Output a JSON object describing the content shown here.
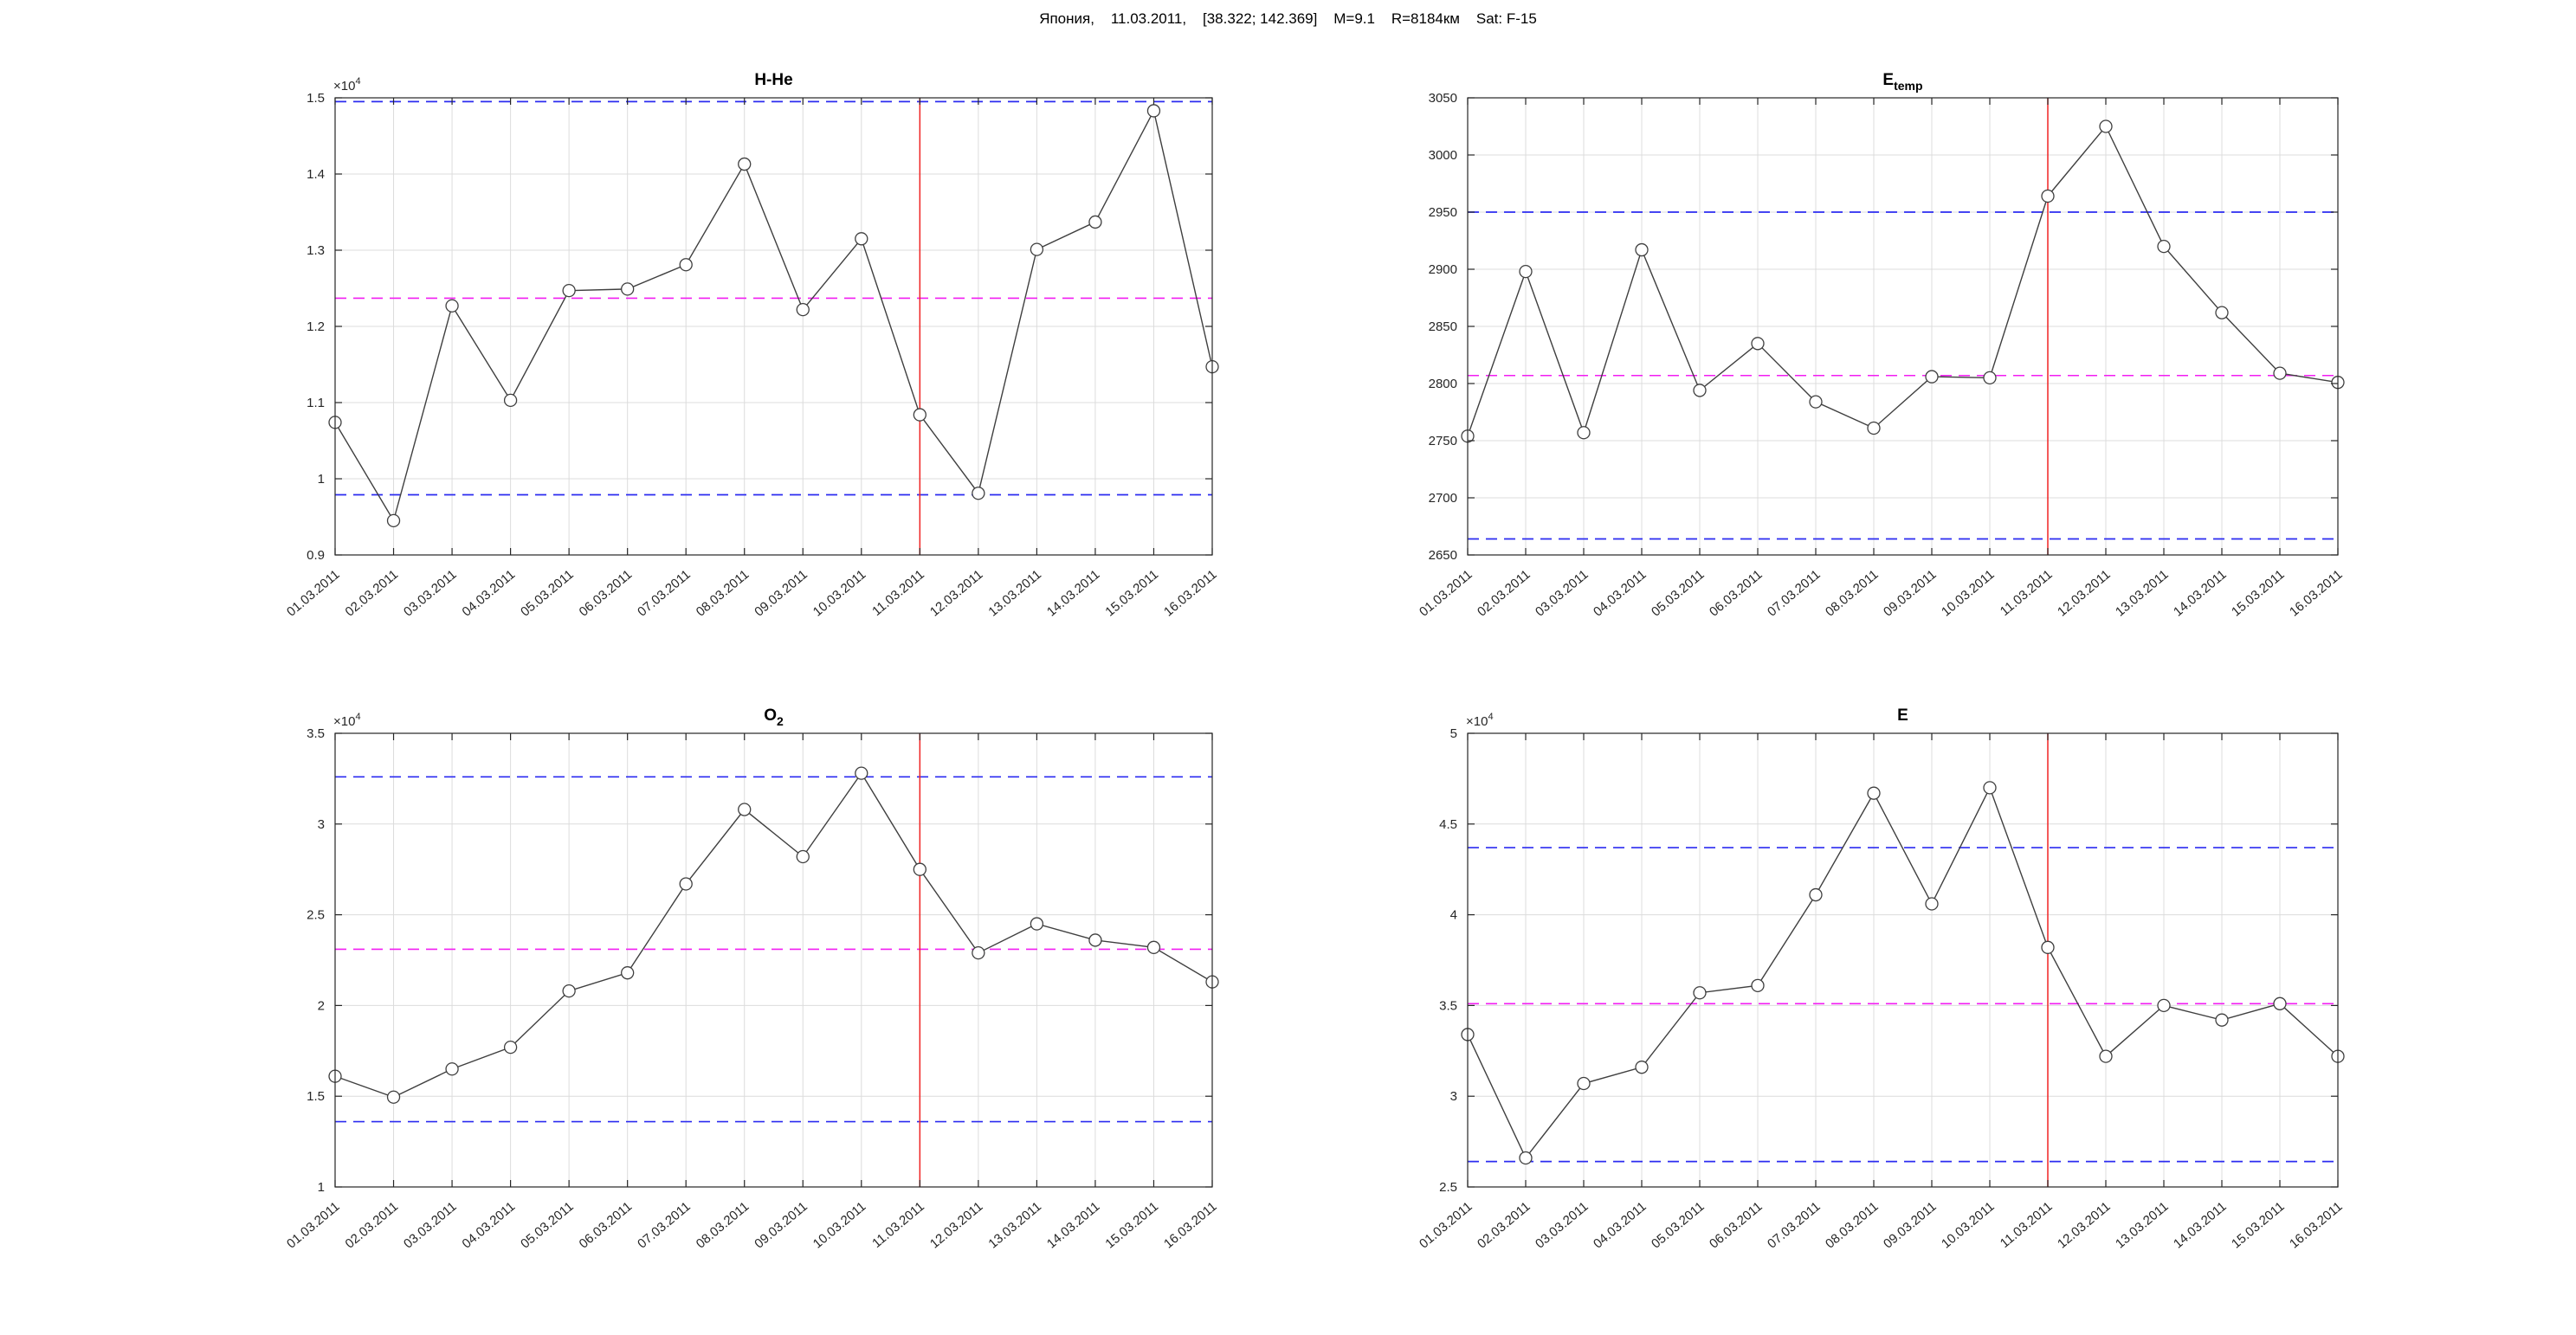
{
  "header": {
    "title": "Япония,    11.03.2011,    [38.322; 142.369]    M=9.1    R=8184км    Sat: F-15"
  },
  "colors": {
    "series": "#3f3f3f",
    "bound": "#2b2bf0",
    "mean": "#f21df2",
    "event": "#f02424",
    "grid": "#dcdcdc",
    "axis": "#262626",
    "background": "#ffffff"
  },
  "chart_data": [
    {
      "id": "h-he",
      "type": "line",
      "title": "H-He",
      "title_sub": "",
      "position": "top-left",
      "grid": true,
      "marker": "circle",
      "categories": [
        "01.03.2011",
        "02.03.2011",
        "03.03.2011",
        "04.03.2011",
        "05.03.2011",
        "06.03.2011",
        "07.03.2011",
        "08.03.2011",
        "09.03.2011",
        "10.03.2011",
        "11.03.2011",
        "12.03.2011",
        "13.03.2011",
        "14.03.2011",
        "15.03.2011",
        "16.03.2011"
      ],
      "values": [
        10740,
        9450,
        12270,
        11030,
        12470,
        12490,
        12810,
        14130,
        12220,
        13150,
        10840,
        9810,
        13010,
        13370,
        14830,
        11470
      ],
      "ylim": [
        9000,
        15000
      ],
      "yticks": [
        9000,
        10000,
        11000,
        12000,
        13000,
        14000,
        15000
      ],
      "ytick_labels": [
        "0.9",
        "1",
        "1.1",
        "1.2",
        "1.3",
        "1.4",
        "1.5"
      ],
      "exponent": "4",
      "exponent_base": "×10",
      "upper_bound": 14950,
      "lower_bound": 9790,
      "mean_line": 12370,
      "event_date": "11.03.2011"
    },
    {
      "id": "e-temp",
      "type": "line",
      "title": "E",
      "title_sub": "temp",
      "position": "top-right",
      "grid": true,
      "marker": "circle",
      "categories": [
        "01.03.2011",
        "02.03.2011",
        "03.03.2011",
        "04.03.2011",
        "05.03.2011",
        "06.03.2011",
        "07.03.2011",
        "08.03.2011",
        "09.03.2011",
        "10.03.2011",
        "11.03.2011",
        "12.03.2011",
        "13.03.2011",
        "14.03.2011",
        "15.03.2011",
        "16.03.2011"
      ],
      "values": [
        2754,
        2898,
        2757,
        2917,
        2794,
        2835,
        2784,
        2761,
        2806,
        2805,
        2964,
        3025,
        2920,
        2862,
        2809,
        2801
      ],
      "ylim": [
        2650,
        3050
      ],
      "yticks": [
        2650,
        2700,
        2750,
        2800,
        2850,
        2900,
        2950,
        3000,
        3050
      ],
      "ytick_labels": [
        "2650",
        "2700",
        "2750",
        "2800",
        "2850",
        "2900",
        "2950",
        "3000",
        "3050"
      ],
      "exponent": "",
      "exponent_base": "",
      "upper_bound": 2950,
      "lower_bound": 2664,
      "mean_line": 2807,
      "event_date": "11.03.2011"
    },
    {
      "id": "o2",
      "type": "line",
      "title": "O",
      "title_sub": "2",
      "position": "bottom-left",
      "grid": true,
      "marker": "circle",
      "categories": [
        "01.03.2011",
        "02.03.2011",
        "03.03.2011",
        "04.03.2011",
        "05.03.2011",
        "06.03.2011",
        "07.03.2011",
        "08.03.2011",
        "09.03.2011",
        "10.03.2011",
        "11.03.2011",
        "12.03.2011",
        "13.03.2011",
        "14.03.2011",
        "15.03.2011",
        "16.03.2011"
      ],
      "values": [
        16100,
        14950,
        16500,
        17700,
        20800,
        21800,
        26700,
        30800,
        28200,
        32800,
        27500,
        22900,
        24500,
        23600,
        23200,
        21300
      ],
      "ylim": [
        10000,
        35000
      ],
      "yticks": [
        10000,
        15000,
        20000,
        25000,
        30000,
        35000
      ],
      "ytick_labels": [
        "1",
        "1.5",
        "2",
        "2.5",
        "3",
        "3.5"
      ],
      "exponent": "4",
      "exponent_base": "×10",
      "upper_bound": 32600,
      "lower_bound": 13600,
      "mean_line": 23100,
      "event_date": "11.03.2011"
    },
    {
      "id": "e",
      "type": "line",
      "title": "E",
      "title_sub": "",
      "position": "bottom-right",
      "grid": true,
      "marker": "circle",
      "categories": [
        "01.03.2011",
        "02.03.2011",
        "03.03.2011",
        "04.03.2011",
        "05.03.2011",
        "06.03.2011",
        "07.03.2011",
        "08.03.2011",
        "09.03.2011",
        "10.03.2011",
        "11.03.2011",
        "12.03.2011",
        "13.03.2011",
        "14.03.2011",
        "15.03.2011",
        "16.03.2011"
      ],
      "values": [
        33400,
        26600,
        30700,
        31600,
        35700,
        36100,
        41100,
        46700,
        40600,
        47000,
        38200,
        32200,
        35000,
        34200,
        35100,
        32200
      ],
      "ylim": [
        25000,
        50000
      ],
      "yticks": [
        25000,
        30000,
        35000,
        40000,
        45000,
        50000
      ],
      "ytick_labels": [
        "2.5",
        "3",
        "3.5",
        "4",
        "4.5",
        "5"
      ],
      "exponent": "4",
      "exponent_base": "×10",
      "upper_bound": 43700,
      "lower_bound": 26400,
      "mean_line": 35100,
      "event_date": "11.03.2011"
    }
  ]
}
